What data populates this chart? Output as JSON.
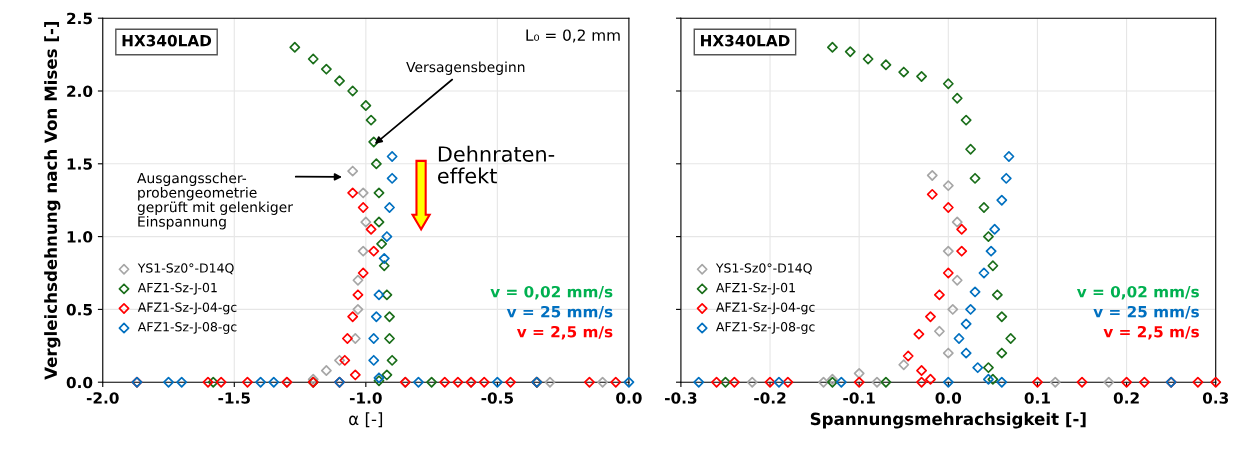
{
  "chart_data": [
    {
      "type": "scatter",
      "ylabel": "Vergleichsdehnung nach Von Mises [-]",
      "xlabel": "α [-]",
      "marker": "diamond",
      "grid": true,
      "legend": "left",
      "xlim": [
        -2.0,
        0.0
      ],
      "xticks": [
        {
          "value": -2.0,
          "label": "-2.0"
        },
        {
          "value": -1.5,
          "label": "-1.5"
        },
        {
          "value": -1.0,
          "label": "-1.0"
        },
        {
          "value": -0.5,
          "label": "-0.5"
        },
        {
          "value": 0.0,
          "label": "0.0"
        }
      ],
      "ylim": [
        0,
        2.5
      ],
      "yticks": [
        {
          "value": 0,
          "label": "0.0"
        },
        {
          "value": 0.5,
          "label": "0.5"
        },
        {
          "value": 1.0,
          "label": "1.0"
        },
        {
          "value": 1.5,
          "label": "1.5"
        },
        {
          "value": 2.0,
          "label": "2.0"
        },
        {
          "value": 2.5,
          "label": "2.5"
        }
      ],
      "annotations": [
        "HX340LAD",
        "L₀ = 0,2 mm",
        {
          "text": "Versagensbeginn",
          "x": -0.97,
          "y": 1.63
        },
        "Ausgangsscher-\nprobengeometrie\ngeprüft mit gelenkiger\nEinspannung",
        "Dehnraten-\neffekt",
        "v = 0,02 mm/s",
        "v = 25 mm/s",
        "v = 2,5 m/s"
      ],
      "series": [
        {
          "name": "YS1-Sz0°-D14Q",
          "color": "#a6a6a6",
          "x": [
            -1.05,
            -1.01,
            -1.0,
            -1.01,
            -1.03,
            -1.03,
            -1.04,
            -1.1,
            -1.15,
            -1.2,
            -1.3,
            -0.85,
            -0.6,
            -0.3,
            -0.1
          ],
          "values": [
            1.45,
            1.3,
            1.1,
            0.9,
            0.7,
            0.5,
            0.3,
            0.15,
            0.08,
            0.02,
            0,
            0,
            0,
            0,
            0
          ]
        },
        {
          "name": "AFZ1-Sz-J-01",
          "color": "#1a6e1a",
          "x": [
            -1.27,
            -1.2,
            -1.15,
            -1.1,
            -1.05,
            -1.0,
            -0.98,
            -0.97,
            -0.96,
            -0.95,
            -0.95,
            -0.94,
            -0.93,
            -0.92,
            -0.91,
            -0.91,
            -0.9,
            -0.92,
            -0.95,
            -1.58,
            -1.2,
            -0.75,
            -0.35
          ],
          "values": [
            2.3,
            2.22,
            2.15,
            2.07,
            2.0,
            1.9,
            1.8,
            1.65,
            1.5,
            1.3,
            1.1,
            0.95,
            0.8,
            0.6,
            0.45,
            0.3,
            0.15,
            0.05,
            0.01,
            0,
            0,
            0,
            0
          ]
        },
        {
          "name": "AFZ1-Sz-J-04-gc",
          "color": "#ff0000",
          "x": [
            -1.05,
            -1.01,
            -0.98,
            -0.97,
            -1.01,
            -1.03,
            -1.05,
            -1.07,
            -1.08,
            -1.04,
            -1.87,
            -1.6,
            -1.55,
            -1.45,
            -1.3,
            -1.2,
            -1.1,
            -0.85,
            -0.7,
            -0.65,
            -0.6,
            -0.55,
            -0.45,
            -0.35,
            -0.15,
            -0.05
          ],
          "values": [
            1.3,
            1.2,
            1.05,
            0.9,
            0.75,
            0.6,
            0.45,
            0.3,
            0.15,
            0.05,
            0,
            0,
            0,
            0,
            0,
            0,
            0,
            0,
            0,
            0,
            0,
            0,
            0,
            0,
            0,
            0
          ]
        },
        {
          "name": "AFZ1-Sz-J-08-gc",
          "color": "#0070c0",
          "x": [
            -0.9,
            -0.9,
            -0.91,
            -0.92,
            -0.93,
            -0.95,
            -0.96,
            -0.97,
            -0.97,
            -0.95,
            -1.87,
            -1.75,
            -1.7,
            -1.4,
            -1.35,
            -1.1,
            -0.8,
            -0.5,
            -0.35,
            0.0
          ],
          "values": [
            1.55,
            1.4,
            1.2,
            1.0,
            0.85,
            0.6,
            0.45,
            0.3,
            0.15,
            0.03,
            0,
            0,
            0,
            0,
            0,
            0,
            0,
            0,
            0,
            0
          ]
        }
      ]
    },
    {
      "type": "scatter",
      "xlabel": "Spannungsmehrachsigkeit [-]",
      "marker": "diamond",
      "grid": true,
      "legend": "left",
      "tick_labels": "x",
      "xlim": [
        -0.3,
        0.3
      ],
      "xticks": [
        {
          "value": -0.3,
          "label": "-0.3"
        },
        {
          "value": -0.2,
          "label": "-0.2"
        },
        {
          "value": -0.1,
          "label": "-0.1"
        },
        {
          "value": 0.0,
          "label": "0.0"
        },
        {
          "value": 0.1,
          "label": "0.1"
        },
        {
          "value": 0.2,
          "label": "0.2"
        },
        {
          "value": 0.3,
          "label": "0.3"
        }
      ],
      "ylim": [
        0,
        2.5
      ],
      "yticks": [
        0,
        0.5,
        1.0,
        1.5,
        2.0,
        2.5
      ],
      "annotations": [
        "HX340LAD",
        "v = 0,02 mm/s",
        "v = 25 mm/s",
        "v = 2,5 m/s"
      ],
      "series": [
        {
          "name": "YS1-Sz0°-D14Q",
          "color": "#a6a6a6",
          "x": [
            -0.018,
            0.0,
            0.01,
            0.0,
            0.01,
            0.005,
            -0.01,
            0.0,
            -0.05,
            -0.1,
            -0.13,
            -0.22,
            -0.14,
            -0.08,
            0.12,
            0.18
          ],
          "values": [
            1.42,
            1.35,
            1.1,
            0.9,
            0.7,
            0.5,
            0.35,
            0.2,
            0.12,
            0.06,
            0.02,
            0,
            0,
            0,
            0,
            0
          ]
        },
        {
          "name": "AFZ1-Sz-J-01",
          "color": "#1a6e1a",
          "x": [
            -0.13,
            -0.11,
            -0.09,
            -0.07,
            -0.05,
            -0.03,
            0.0,
            0.01,
            0.02,
            0.025,
            0.03,
            0.04,
            0.045,
            0.05,
            0.055,
            0.06,
            0.07,
            0.06,
            0.045,
            0.05,
            -0.25,
            -0.13,
            -0.07
          ],
          "values": [
            2.3,
            2.27,
            2.22,
            2.18,
            2.13,
            2.1,
            2.05,
            1.95,
            1.8,
            1.6,
            1.4,
            1.2,
            1.0,
            0.8,
            0.6,
            0.45,
            0.3,
            0.2,
            0.1,
            0.02,
            0,
            0,
            0
          ]
        },
        {
          "name": "AFZ1-Sz-J-04-gc",
          "color": "#ff0000",
          "x": [
            -0.018,
            0.0,
            0.015,
            0.015,
            0.0,
            -0.01,
            -0.02,
            -0.033,
            -0.045,
            -0.03,
            -0.02,
            -0.26,
            -0.24,
            -0.2,
            -0.18,
            -0.1,
            -0.03,
            0.1,
            0.15,
            0.2,
            0.22,
            0.25,
            0.28,
            0.3
          ],
          "values": [
            1.29,
            1.2,
            1.05,
            0.9,
            0.75,
            0.6,
            0.45,
            0.33,
            0.18,
            0.08,
            0.02,
            0,
            0,
            0,
            0,
            0,
            0,
            0,
            0,
            0,
            0,
            0,
            0,
            0
          ]
        },
        {
          "name": "AFZ1-Sz-J-08-gc",
          "color": "#0070c0",
          "x": [
            0.068,
            0.065,
            0.06,
            0.052,
            0.048,
            0.04,
            0.03,
            0.025,
            0.02,
            0.012,
            0.02,
            0.033,
            0.045,
            -0.28,
            -0.19,
            -0.12,
            0.0,
            0.06,
            0.25
          ],
          "values": [
            1.55,
            1.4,
            1.25,
            1.05,
            0.9,
            0.75,
            0.62,
            0.5,
            0.4,
            0.3,
            0.2,
            0.1,
            0.02,
            0,
            0,
            0,
            0,
            0,
            0
          ]
        }
      ]
    }
  ]
}
